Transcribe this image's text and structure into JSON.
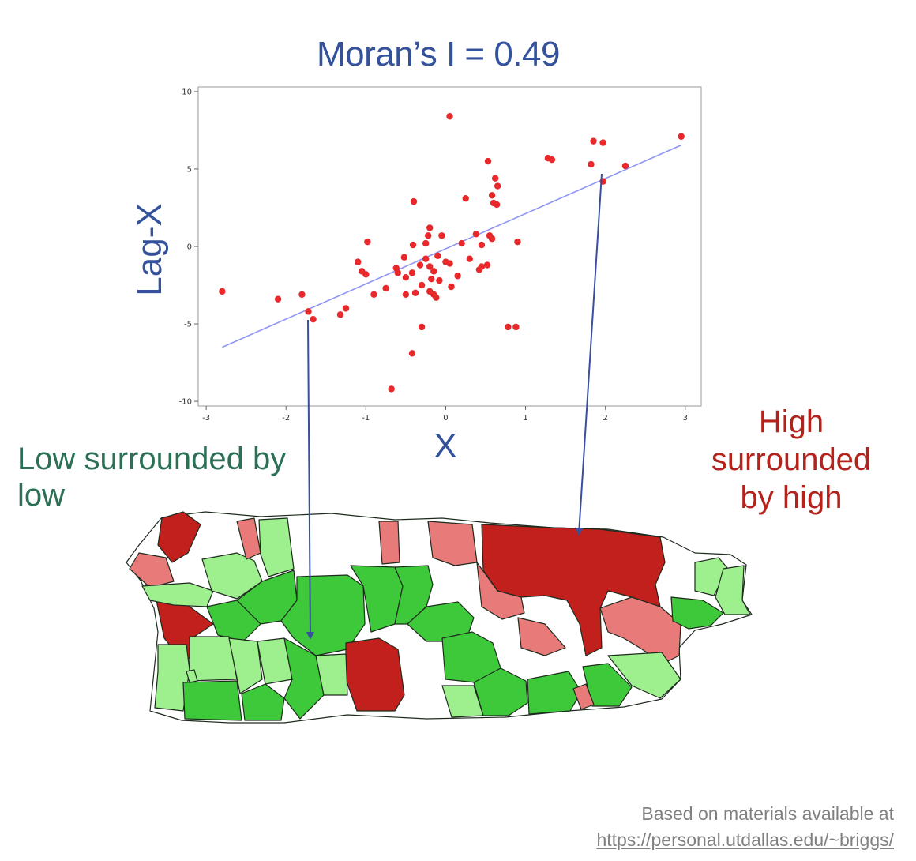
{
  "title": "Moran’s I = 0.49",
  "annotations": {
    "low": "Low surrounded by low",
    "high_line1": "High",
    "high_line2": "surrounded",
    "high_line3": "by high"
  },
  "credit": {
    "line1": "Based on materials available at",
    "url": "https://personal.utdallas.edu/~briggs/"
  },
  "colors": {
    "title": "#34529c",
    "points": "#e8282a",
    "fit_line": "#8f95f5",
    "arrow": "#3a4fa0",
    "low_text": "#2b7055",
    "high_text": "#b3231c",
    "map_high_high": "#c1201c",
    "map_high_low": "#e97a7a",
    "map_low_low": "#3ec93a",
    "map_low_high": "#9ef08f",
    "map_not_sig": "#ffffff"
  },
  "chart_data": {
    "type": "scatter",
    "title": "Moran’s I = 0.49",
    "xlabel": "X",
    "ylabel": "Lag-X",
    "xlim": [
      -3.1,
      3.2
    ],
    "ylim": [
      -10.3,
      10.3
    ],
    "xticks": [
      -3,
      -2,
      -1,
      0,
      1,
      2,
      3
    ],
    "yticks": [
      -10,
      -5,
      0,
      5,
      10
    ],
    "grid": false,
    "fit_line": {
      "slope": 2.27,
      "intercept": -0.15,
      "x_range": [
        -2.8,
        2.95
      ]
    },
    "points": [
      {
        "x": 0.05,
        "y": 8.4
      },
      {
        "x": 2.95,
        "y": 7.1
      },
      {
        "x": 1.85,
        "y": 6.8
      },
      {
        "x": 1.97,
        "y": 6.7
      },
      {
        "x": 1.28,
        "y": 5.7
      },
      {
        "x": 1.33,
        "y": 5.6
      },
      {
        "x": 0.53,
        "y": 5.5
      },
      {
        "x": 1.82,
        "y": 5.3
      },
      {
        "x": 2.25,
        "y": 5.2
      },
      {
        "x": 0.62,
        "y": 4.4
      },
      {
        "x": 1.97,
        "y": 4.2
      },
      {
        "x": 0.65,
        "y": 3.9
      },
      {
        "x": 0.58,
        "y": 3.3
      },
      {
        "x": 0.25,
        "y": 3.1
      },
      {
        "x": -0.4,
        "y": 2.9
      },
      {
        "x": 0.6,
        "y": 2.8
      },
      {
        "x": 0.64,
        "y": 2.7
      },
      {
        "x": -0.2,
        "y": 1.2
      },
      {
        "x": 0.38,
        "y": 0.8
      },
      {
        "x": -0.22,
        "y": 0.7
      },
      {
        "x": -0.05,
        "y": 0.7
      },
      {
        "x": 0.55,
        "y": 0.7
      },
      {
        "x": -0.98,
        "y": 0.3
      },
      {
        "x": 0.9,
        "y": 0.3
      },
      {
        "x": -0.25,
        "y": 0.2
      },
      {
        "x": 0.2,
        "y": 0.2
      },
      {
        "x": -0.41,
        "y": 0.1
      },
      {
        "x": 0.45,
        "y": 0.1
      },
      {
        "x": 0.58,
        "y": 0.5
      },
      {
        "x": -0.1,
        "y": -0.6
      },
      {
        "x": -0.52,
        "y": -0.7
      },
      {
        "x": -0.25,
        "y": -0.8
      },
      {
        "x": 0.3,
        "y": -0.8
      },
      {
        "x": -1.1,
        "y": -1.0
      },
      {
        "x": 0.0,
        "y": -1.0
      },
      {
        "x": 0.05,
        "y": -1.1
      },
      {
        "x": -0.32,
        "y": -1.2
      },
      {
        "x": 0.52,
        "y": -1.2
      },
      {
        "x": -0.2,
        "y": -1.3
      },
      {
        "x": 0.45,
        "y": -1.3
      },
      {
        "x": -0.62,
        "y": -1.4
      },
      {
        "x": 0.42,
        "y": -1.5
      },
      {
        "x": -1.05,
        "y": -1.6
      },
      {
        "x": -0.15,
        "y": -1.6
      },
      {
        "x": -0.42,
        "y": -1.7
      },
      {
        "x": -0.6,
        "y": -1.7
      },
      {
        "x": -1.0,
        "y": -1.8
      },
      {
        "x": 0.15,
        "y": -1.9
      },
      {
        "x": -0.5,
        "y": -2.0
      },
      {
        "x": -0.18,
        "y": -2.1
      },
      {
        "x": -0.08,
        "y": -2.2
      },
      {
        "x": -0.3,
        "y": -2.5
      },
      {
        "x": 0.07,
        "y": -2.6
      },
      {
        "x": -0.75,
        "y": -2.7
      },
      {
        "x": -0.2,
        "y": -2.9
      },
      {
        "x": -0.38,
        "y": -3.0
      },
      {
        "x": -0.9,
        "y": -3.1
      },
      {
        "x": -0.5,
        "y": -3.1
      },
      {
        "x": -0.15,
        "y": -3.1
      },
      {
        "x": -0.12,
        "y": -3.3
      },
      {
        "x": -2.8,
        "y": -2.9
      },
      {
        "x": -2.1,
        "y": -3.4
      },
      {
        "x": -1.8,
        "y": -3.1
      },
      {
        "x": -1.25,
        "y": -4.0
      },
      {
        "x": -1.72,
        "y": -4.2
      },
      {
        "x": -1.32,
        "y": -4.4
      },
      {
        "x": -1.66,
        "y": -4.7
      },
      {
        "x": -0.3,
        "y": -5.2
      },
      {
        "x": 0.78,
        "y": -5.2
      },
      {
        "x": 0.88,
        "y": -5.2
      },
      {
        "x": -0.42,
        "y": -6.9
      },
      {
        "x": -0.68,
        "y": -9.2
      }
    ]
  }
}
